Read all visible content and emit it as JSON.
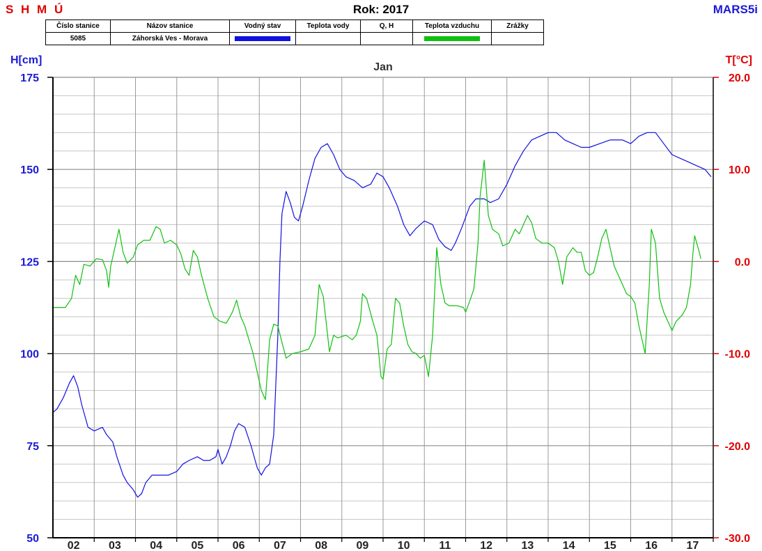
{
  "header": {
    "brand_left": "S H M Ú",
    "title": "Rok: 2017",
    "brand_right": "MARS5i"
  },
  "legend": {
    "columns": [
      "Číslo stanice",
      "Názov stanice",
      "Vodný stav",
      "Teplota vody",
      "Q, H",
      "Teplota vzduchu",
      "Zrážky"
    ],
    "station_number": "5085",
    "station_name": "Záhorská Ves - Morava",
    "water_level_color": "#1010e0",
    "air_temp_color": "#10c010"
  },
  "chart_data": {
    "type": "line",
    "title": "Jan",
    "ylabel_left": "H[cm]",
    "ylabel_right": "T[°C]",
    "ylim_left": [
      50,
      175
    ],
    "ylim_right": [
      -30,
      20
    ],
    "yticks_left": [
      "175",
      "150",
      "125",
      "100",
      "75",
      "50"
    ],
    "yticks_right": [
      "20.0",
      "10.0",
      "0.0",
      "-10.0",
      "-20.0",
      "-30.0"
    ],
    "xlim": [
      1.5,
      17.5
    ],
    "xticks": [
      "02",
      "03",
      "04",
      "05",
      "06",
      "07",
      "08",
      "09",
      "10",
      "11",
      "12",
      "13",
      "14",
      "15",
      "16",
      "17"
    ],
    "grid": true,
    "series": [
      {
        "axis": "left",
        "color": "#1010e0",
        "points": [
          [
            1.5,
            84
          ],
          [
            1.6,
            85
          ],
          [
            1.75,
            88
          ],
          [
            1.9,
            92
          ],
          [
            2.0,
            94
          ],
          [
            2.1,
            91
          ],
          [
            2.2,
            86
          ],
          [
            2.35,
            80
          ],
          [
            2.5,
            79
          ],
          [
            2.7,
            80
          ],
          [
            2.8,
            78
          ],
          [
            2.95,
            76
          ],
          [
            3.05,
            72
          ],
          [
            3.2,
            67
          ],
          [
            3.3,
            65
          ],
          [
            3.45,
            63
          ],
          [
            3.55,
            61
          ],
          [
            3.65,
            62
          ],
          [
            3.75,
            65
          ],
          [
            3.9,
            67
          ],
          [
            4.1,
            67
          ],
          [
            4.3,
            67
          ],
          [
            4.5,
            68
          ],
          [
            4.65,
            70
          ],
          [
            4.8,
            71
          ],
          [
            5.0,
            72
          ],
          [
            5.15,
            71
          ],
          [
            5.3,
            71
          ],
          [
            5.45,
            72
          ],
          [
            5.5,
            74
          ],
          [
            5.6,
            70
          ],
          [
            5.7,
            72
          ],
          [
            5.8,
            75
          ],
          [
            5.9,
            79
          ],
          [
            6.0,
            81
          ],
          [
            6.15,
            80
          ],
          [
            6.3,
            75
          ],
          [
            6.45,
            69
          ],
          [
            6.55,
            67
          ],
          [
            6.65,
            69
          ],
          [
            6.75,
            70
          ],
          [
            6.85,
            78
          ],
          [
            6.95,
            105
          ],
          [
            7.0,
            125
          ],
          [
            7.05,
            138
          ],
          [
            7.15,
            144
          ],
          [
            7.25,
            141
          ],
          [
            7.35,
            137
          ],
          [
            7.45,
            136
          ],
          [
            7.55,
            140
          ],
          [
            7.7,
            147
          ],
          [
            7.85,
            153
          ],
          [
            8.0,
            156
          ],
          [
            8.15,
            157
          ],
          [
            8.3,
            154
          ],
          [
            8.45,
            150
          ],
          [
            8.6,
            148
          ],
          [
            8.8,
            147
          ],
          [
            9.0,
            145
          ],
          [
            9.2,
            146
          ],
          [
            9.35,
            149
          ],
          [
            9.5,
            148
          ],
          [
            9.65,
            145
          ],
          [
            9.85,
            140
          ],
          [
            10.0,
            135
          ],
          [
            10.15,
            132
          ],
          [
            10.3,
            134
          ],
          [
            10.5,
            136
          ],
          [
            10.7,
            135
          ],
          [
            10.85,
            131
          ],
          [
            11.0,
            129
          ],
          [
            11.15,
            128
          ],
          [
            11.25,
            130
          ],
          [
            11.4,
            134
          ],
          [
            11.6,
            140
          ],
          [
            11.75,
            142
          ],
          [
            11.95,
            142
          ],
          [
            12.1,
            141
          ],
          [
            12.3,
            142
          ],
          [
            12.5,
            146
          ],
          [
            12.7,
            151
          ],
          [
            12.9,
            155
          ],
          [
            13.1,
            158
          ],
          [
            13.3,
            159
          ],
          [
            13.5,
            160
          ],
          [
            13.7,
            160
          ],
          [
            13.9,
            158
          ],
          [
            14.1,
            157
          ],
          [
            14.3,
            156
          ],
          [
            14.5,
            156
          ],
          [
            14.75,
            157
          ],
          [
            15.0,
            158
          ],
          [
            15.3,
            158
          ],
          [
            15.5,
            157
          ],
          [
            15.7,
            159
          ],
          [
            15.9,
            160
          ],
          [
            16.1,
            160
          ],
          [
            16.3,
            157
          ],
          [
            16.5,
            154
          ],
          [
            16.7,
            153
          ],
          [
            16.9,
            152
          ],
          [
            17.1,
            151
          ],
          [
            17.3,
            150
          ],
          [
            17.45,
            148
          ]
        ]
      },
      {
        "axis": "right",
        "color": "#10c010",
        "points": [
          [
            1.5,
            -5.0
          ],
          [
            1.8,
            -5.0
          ],
          [
            1.95,
            -4.0
          ],
          [
            2.05,
            -1.5
          ],
          [
            2.15,
            -2.5
          ],
          [
            2.25,
            -0.3
          ],
          [
            2.4,
            -0.5
          ],
          [
            2.55,
            0.3
          ],
          [
            2.7,
            0.2
          ],
          [
            2.8,
            -1.0
          ],
          [
            2.85,
            -2.8
          ],
          [
            2.9,
            -0.5
          ],
          [
            3.0,
            1.5
          ],
          [
            3.1,
            3.5
          ],
          [
            3.2,
            1.0
          ],
          [
            3.3,
            -0.2
          ],
          [
            3.45,
            0.5
          ],
          [
            3.55,
            1.8
          ],
          [
            3.7,
            2.3
          ],
          [
            3.85,
            2.3
          ],
          [
            4.0,
            3.8
          ],
          [
            4.1,
            3.5
          ],
          [
            4.2,
            2.0
          ],
          [
            4.35,
            2.3
          ],
          [
            4.5,
            1.8
          ],
          [
            4.6,
            0.8
          ],
          [
            4.7,
            -0.8
          ],
          [
            4.8,
            -1.5
          ],
          [
            4.9,
            1.2
          ],
          [
            5.0,
            0.5
          ],
          [
            5.1,
            -1.5
          ],
          [
            5.25,
            -4.0
          ],
          [
            5.4,
            -6.0
          ],
          [
            5.55,
            -6.5
          ],
          [
            5.7,
            -6.7
          ],
          [
            5.85,
            -5.5
          ],
          [
            5.95,
            -4.2
          ],
          [
            6.05,
            -6.0
          ],
          [
            6.15,
            -7.0
          ],
          [
            6.25,
            -8.5
          ],
          [
            6.35,
            -10.0
          ],
          [
            6.45,
            -12.0
          ],
          [
            6.55,
            -14.0
          ],
          [
            6.65,
            -15.0
          ],
          [
            6.75,
            -8.5
          ],
          [
            6.85,
            -6.8
          ],
          [
            6.95,
            -7.0
          ],
          [
            7.05,
            -8.8
          ],
          [
            7.15,
            -10.5
          ],
          [
            7.3,
            -10.0
          ],
          [
            7.5,
            -9.8
          ],
          [
            7.7,
            -9.5
          ],
          [
            7.85,
            -8.0
          ],
          [
            7.95,
            -2.5
          ],
          [
            8.05,
            -3.8
          ],
          [
            8.2,
            -9.8
          ],
          [
            8.3,
            -8.0
          ],
          [
            8.4,
            -8.3
          ],
          [
            8.6,
            -8.0
          ],
          [
            8.75,
            -8.5
          ],
          [
            8.85,
            -8.0
          ],
          [
            8.95,
            -6.5
          ],
          [
            9.0,
            -3.5
          ],
          [
            9.1,
            -4.0
          ],
          [
            9.25,
            -6.5
          ],
          [
            9.35,
            -8.0
          ],
          [
            9.45,
            -12.5
          ],
          [
            9.5,
            -12.8
          ],
          [
            9.6,
            -9.5
          ],
          [
            9.7,
            -9.0
          ],
          [
            9.8,
            -4.0
          ],
          [
            9.9,
            -4.5
          ],
          [
            10.0,
            -7.0
          ],
          [
            10.1,
            -9.0
          ],
          [
            10.2,
            -9.8
          ],
          [
            10.3,
            -10.0
          ],
          [
            10.4,
            -10.5
          ],
          [
            10.5,
            -10.2
          ],
          [
            10.6,
            -12.5
          ],
          [
            10.7,
            -8.0
          ],
          [
            10.8,
            1.5
          ],
          [
            10.9,
            -2.5
          ],
          [
            11.0,
            -4.5
          ],
          [
            11.1,
            -4.8
          ],
          [
            11.3,
            -4.8
          ],
          [
            11.45,
            -5.0
          ],
          [
            11.5,
            -5.5
          ],
          [
            11.6,
            -4.3
          ],
          [
            11.7,
            -3.0
          ],
          [
            11.8,
            2.0
          ],
          [
            11.85,
            7.0
          ],
          [
            11.95,
            11.0
          ],
          [
            12.05,
            5.0
          ],
          [
            12.15,
            3.5
          ],
          [
            12.3,
            3.0
          ],
          [
            12.4,
            1.7
          ],
          [
            12.55,
            2.0
          ],
          [
            12.7,
            3.5
          ],
          [
            12.8,
            3.0
          ],
          [
            12.9,
            4.0
          ],
          [
            13.0,
            5.0
          ],
          [
            13.1,
            4.2
          ],
          [
            13.2,
            2.5
          ],
          [
            13.35,
            2.0
          ],
          [
            13.5,
            2.0
          ],
          [
            13.65,
            1.5
          ],
          [
            13.75,
            0.0
          ],
          [
            13.85,
            -2.5
          ],
          [
            13.95,
            0.5
          ],
          [
            14.1,
            1.5
          ],
          [
            14.2,
            1.0
          ],
          [
            14.3,
            1.0
          ],
          [
            14.4,
            -1.0
          ],
          [
            14.5,
            -1.5
          ],
          [
            14.6,
            -1.2
          ],
          [
            14.7,
            0.5
          ],
          [
            14.8,
            2.5
          ],
          [
            14.9,
            3.5
          ],
          [
            15.0,
            1.5
          ],
          [
            15.1,
            -0.5
          ],
          [
            15.25,
            -2.0
          ],
          [
            15.4,
            -3.5
          ],
          [
            15.5,
            -3.8
          ],
          [
            15.6,
            -4.5
          ],
          [
            15.7,
            -7.0
          ],
          [
            15.8,
            -9.0
          ],
          [
            15.85,
            -10.0
          ],
          [
            15.95,
            -2.5
          ],
          [
            16.0,
            3.5
          ],
          [
            16.1,
            2.0
          ],
          [
            16.2,
            -4.0
          ],
          [
            16.3,
            -5.5
          ],
          [
            16.4,
            -6.5
          ],
          [
            16.5,
            -7.5
          ],
          [
            16.6,
            -6.5
          ],
          [
            16.75,
            -5.8
          ],
          [
            16.85,
            -5.0
          ],
          [
            16.95,
            -2.5
          ],
          [
            17.0,
            0.5
          ],
          [
            17.05,
            2.8
          ],
          [
            17.15,
            1.2
          ],
          [
            17.2,
            0.3
          ]
        ]
      }
    ]
  }
}
